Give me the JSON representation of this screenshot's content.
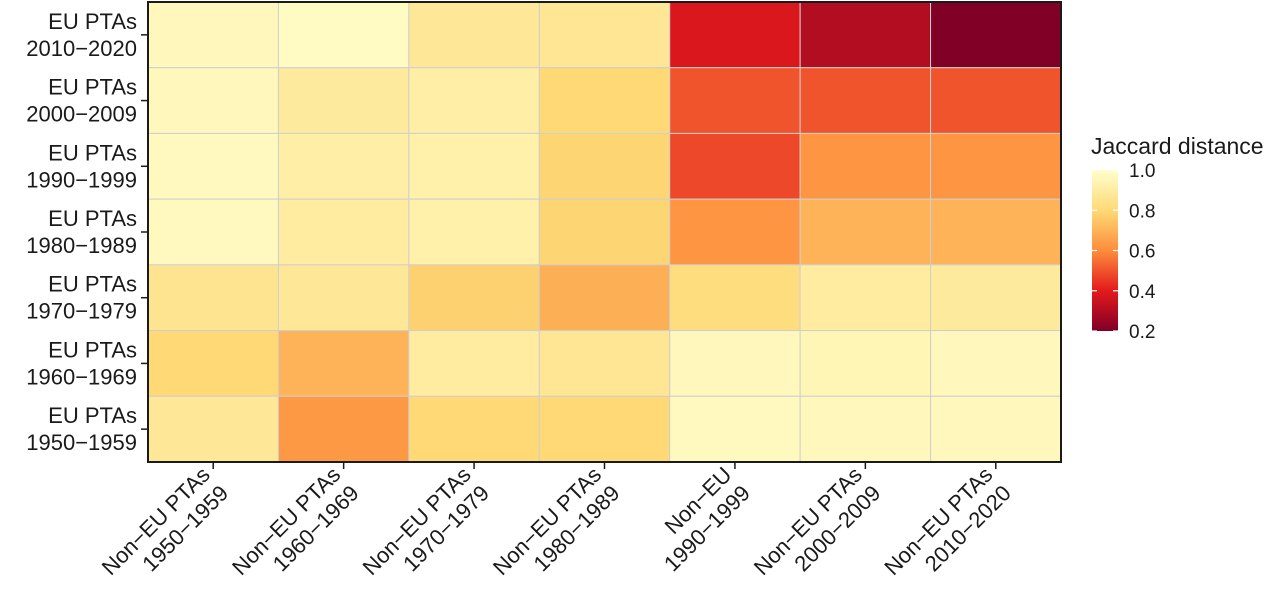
{
  "chart_data": {
    "type": "heatmap",
    "title": "",
    "xlabel": "",
    "ylabel": "",
    "x_categories": [
      [
        "Non−EU PTAs",
        "1950−1959"
      ],
      [
        "Non−EU PTAs",
        "1960−1969"
      ],
      [
        "Non−EU PTAs",
        "1970−1979"
      ],
      [
        "Non−EU PTAs",
        "1980−1989"
      ],
      [
        "Non−EU",
        "1990−1999"
      ],
      [
        "Non−EU PTAs",
        "2000−2009"
      ],
      [
        "Non−EU PTAs",
        "2010−2020"
      ]
    ],
    "y_categories": [
      [
        "EU PTAs",
        "2010−2020"
      ],
      [
        "EU PTAs",
        "2000−2009"
      ],
      [
        "EU PTAs",
        "1990−1999"
      ],
      [
        "EU PTAs",
        "1980−1989"
      ],
      [
        "EU PTAs",
        "1970−1979"
      ],
      [
        "EU PTAs",
        "1960−1969"
      ],
      [
        "EU PTAs",
        "1950−1959"
      ]
    ],
    "values": [
      [
        0.96,
        0.98,
        0.88,
        0.87,
        0.38,
        0.3,
        0.2
      ],
      [
        0.96,
        0.89,
        0.91,
        0.8,
        0.5,
        0.5,
        0.5
      ],
      [
        0.97,
        0.91,
        0.92,
        0.79,
        0.48,
        0.62,
        0.62
      ],
      [
        0.97,
        0.9,
        0.92,
        0.79,
        0.62,
        0.7,
        0.7
      ],
      [
        0.86,
        0.88,
        0.78,
        0.69,
        0.82,
        0.9,
        0.89
      ],
      [
        0.8,
        0.7,
        0.9,
        0.87,
        0.96,
        0.95,
        0.96
      ],
      [
        0.88,
        0.63,
        0.8,
        0.8,
        0.97,
        0.96,
        0.96
      ]
    ],
    "color_scale": {
      "domain": [
        0.2,
        0.4,
        0.6,
        0.8,
        1.0
      ],
      "colors": [
        "#800026",
        "#e31a1c",
        "#fd8d3c",
        "#fed976",
        "#ffffcc"
      ]
    },
    "legend": {
      "title": "Jaccard distance",
      "ticks": [
        {
          "value": 1.0,
          "label": "1.0"
        },
        {
          "value": 0.8,
          "label": "0.8"
        },
        {
          "value": 0.6,
          "label": "0.6"
        },
        {
          "value": 0.4,
          "label": "0.4"
        },
        {
          "value": 0.2,
          "label": "0.2"
        }
      ],
      "range": [
        0.2,
        1.0
      ],
      "position": "right"
    }
  }
}
